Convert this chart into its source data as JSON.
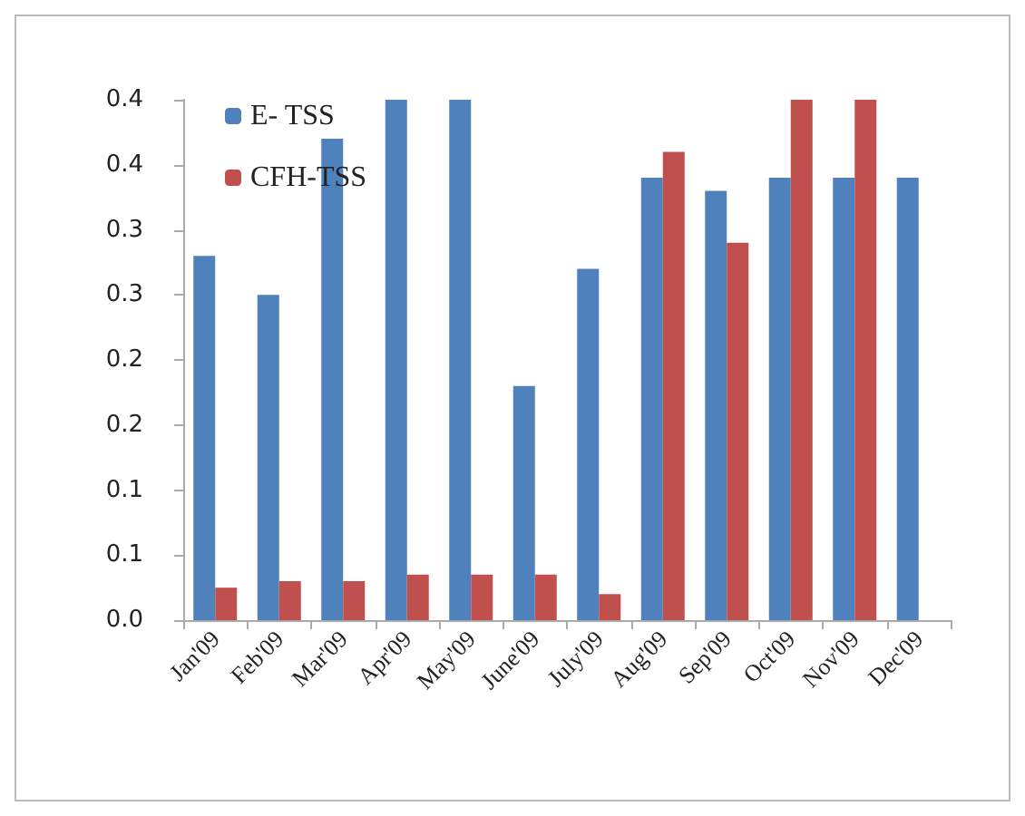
{
  "chart_data": {
    "type": "bar",
    "categories": [
      "Jan'09",
      "Feb'09",
      "Mar'09",
      "Apr'09",
      "May'09",
      "June'09",
      "July'09",
      "Aug'09",
      "Sep'09",
      "Oct'09",
      "Nov'09",
      "Dec'09"
    ],
    "series": [
      {
        "name": "E- TSS",
        "color": "#4f81bd",
        "values": [
          0.28,
          0.25,
          0.37,
          0.4,
          0.4,
          0.18,
          0.27,
          0.34,
          0.33,
          0.34,
          0.34,
          0.34
        ]
      },
      {
        "name": "CFH-TSS",
        "color": "#c0504d",
        "values": [
          0.025,
          0.03,
          0.03,
          0.035,
          0.035,
          0.035,
          0.02,
          0.36,
          0.29,
          0.4,
          0.4,
          0
        ]
      }
    ],
    "ylim": [
      0,
      0.4
    ],
    "yticks": [
      {
        "value": 0,
        "label": "0.0"
      },
      {
        "value": 0.05,
        "label": "0.1"
      },
      {
        "value": 0.1,
        "label": "0.1"
      },
      {
        "value": 0.15,
        "label": "0.2"
      },
      {
        "value": 0.2,
        "label": "0.2"
      },
      {
        "value": 0.25,
        "label": "0.3"
      },
      {
        "value": 0.3,
        "label": "0.3"
      },
      {
        "value": 0.35,
        "label": "0.4"
      },
      {
        "value": 0.4,
        "label": "0.4"
      }
    ],
    "grid": false,
    "legend": "top left"
  }
}
